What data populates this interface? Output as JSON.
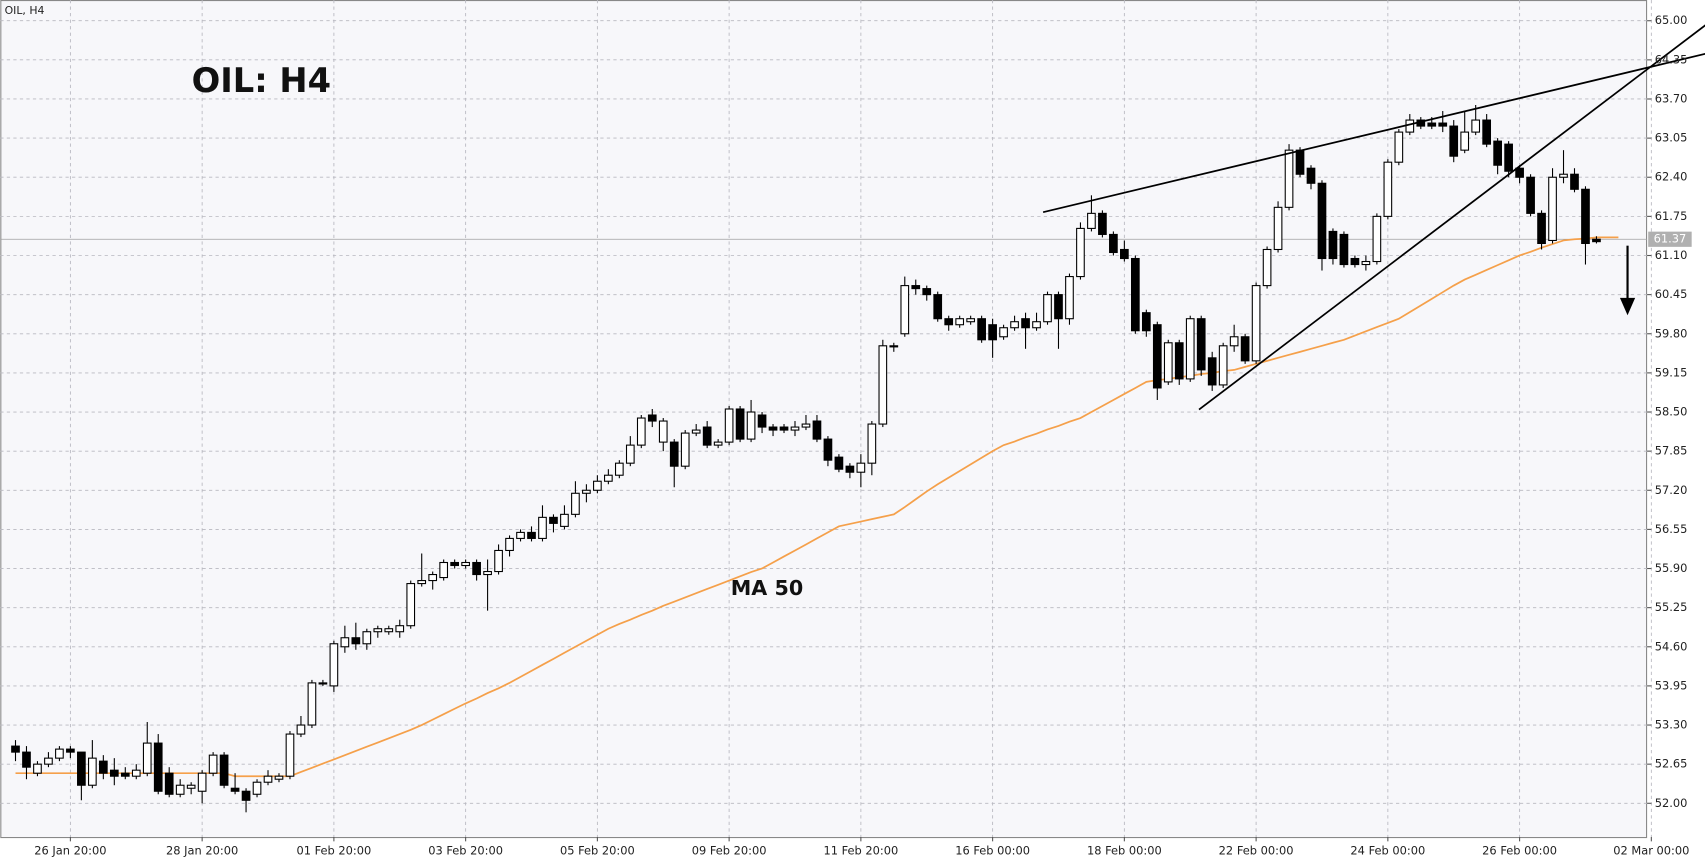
{
  "chart_data": {
    "type": "candlestick",
    "title": "OIL: H4",
    "symbol_label": "OIL, H4",
    "last_price": 61.37,
    "up_color": "#ffffff",
    "down_color": "#000000",
    "grid": true,
    "categories": [
      null,
      null,
      null,
      null,
      null,
      "26 Jan 20:00",
      null,
      null,
      null,
      null,
      null,
      null,
      null,
      null,
      null,
      null,
      null,
      "28 Jan 20:00",
      null,
      null,
      null,
      null,
      null,
      null,
      null,
      null,
      null,
      null,
      null,
      "01 Feb 20:00",
      null,
      null,
      null,
      null,
      null,
      null,
      null,
      null,
      null,
      null,
      null,
      "03 Feb 20:00",
      null,
      null,
      null,
      null,
      null,
      null,
      null,
      null,
      null,
      null,
      null,
      "05 Feb 20:00",
      null,
      null,
      null,
      null,
      null,
      null,
      null,
      null,
      null,
      null,
      null,
      "09 Feb 20:00",
      null,
      null,
      null,
      null,
      null,
      null,
      null,
      null,
      null,
      null,
      null,
      "11 Feb 20:00",
      null,
      null,
      null,
      null,
      null,
      null,
      null,
      null,
      null,
      null,
      null,
      "16 Feb 00:00",
      null,
      null,
      null,
      null,
      null,
      null,
      null,
      null,
      null,
      null,
      null,
      "18 Feb 00:00",
      null,
      null,
      null,
      null,
      null,
      null,
      null,
      null,
      null,
      null,
      null,
      "22 Feb 00:00",
      null,
      null,
      null,
      null,
      null,
      null,
      null,
      null,
      null,
      null,
      null,
      "24 Feb 00:00",
      null,
      null,
      null,
      null,
      null,
      null,
      null,
      null,
      null,
      null,
      null,
      "26 Feb 00:00",
      null,
      null,
      null,
      null,
      null,
      null,
      null,
      null,
      null,
      null,
      null,
      "02 Mar 00:00"
    ],
    "open": [
      52.95,
      52.85,
      52.5,
      52.65,
      52.75,
      52.9,
      52.85,
      52.3,
      52.7,
      52.55,
      52.5,
      52.45,
      52.5,
      53.0,
      52.5,
      52.15,
      52.25,
      52.2,
      52.5,
      52.8,
      52.25,
      52.2,
      52.15,
      52.35,
      52.4,
      52.45,
      53.15,
      53.3,
      54.0,
      53.95,
      54.6,
      54.75,
      54.65,
      54.85,
      54.85,
      54.85,
      54.95,
      55.65,
      55.7,
      55.75,
      56.0,
      55.95,
      56.0,
      55.8,
      55.85,
      56.2,
      56.4,
      56.5,
      56.4,
      56.75,
      56.6,
      56.8,
      57.15,
      57.2,
      57.35,
      57.45,
      57.65,
      57.95,
      58.45,
      58.0,
      58.0,
      57.6,
      58.15,
      58.25,
      57.95,
      58.0,
      58.55,
      58.05,
      58.45,
      58.25,
      58.25,
      58.2,
      58.25,
      58.35,
      58.05,
      57.75,
      57.6,
      57.5,
      57.65,
      58.3,
      59.6,
      59.8,
      60.6,
      60.55,
      60.45,
      60.05,
      59.95,
      60.0,
      60.05,
      59.95,
      59.75,
      59.9,
      60.05,
      59.9,
      60.0,
      60.45,
      60.05,
      60.75,
      61.55,
      61.8,
      61.45,
      61.2,
      61.05,
      60.15,
      59.95,
      59.0,
      59.65,
      59.05,
      60.05,
      59.4,
      58.95,
      59.6,
      59.75,
      59.35,
      60.6,
      61.2,
      61.9,
      62.85,
      62.55,
      62.3,
      61.5,
      61.45,
      61.05,
      60.95,
      61.0,
      61.75,
      62.65,
      63.15,
      63.35,
      63.3,
      63.3,
      63.25,
      62.85,
      63.15,
      63.35,
      63.0,
      62.95,
      62.55,
      62.4,
      61.8,
      61.35,
      62.4,
      62.45,
      62.2,
      61.37,
      null,
      null,
      null,
      null,
      null
    ],
    "high": [
      53.05,
      52.95,
      52.7,
      52.85,
      52.95,
      52.95,
      52.85,
      53.05,
      52.8,
      52.75,
      52.6,
      52.65,
      53.35,
      53.15,
      52.6,
      52.4,
      52.35,
      52.55,
      52.85,
      52.85,
      52.5,
      52.25,
      52.4,
      52.55,
      52.5,
      53.2,
      53.45,
      54.05,
      54.05,
      54.7,
      54.95,
      55.0,
      54.9,
      54.95,
      54.95,
      55.05,
      55.7,
      56.15,
      55.85,
      56.05,
      56.05,
      56.05,
      56.05,
      56.05,
      56.3,
      56.45,
      56.55,
      56.6,
      56.95,
      56.8,
      56.95,
      57.35,
      57.3,
      57.45,
      57.55,
      57.7,
      58.1,
      58.45,
      58.55,
      58.4,
      58.05,
      58.2,
      58.3,
      58.35,
      58.05,
      58.6,
      58.6,
      58.7,
      58.5,
      58.3,
      58.3,
      58.35,
      58.45,
      58.45,
      58.1,
      57.8,
      57.65,
      57.8,
      58.35,
      59.7,
      59.65,
      60.75,
      60.7,
      60.6,
      60.5,
      60.1,
      60.1,
      60.1,
      60.1,
      60.05,
      59.95,
      60.1,
      60.15,
      60.15,
      60.5,
      60.5,
      60.8,
      61.65,
      62.1,
      61.85,
      61.5,
      61.35,
      61.1,
      60.2,
      60.0,
      59.7,
      59.7,
      60.1,
      60.1,
      59.5,
      59.65,
      59.95,
      59.8,
      60.65,
      61.25,
      62.0,
      62.95,
      62.9,
      62.6,
      62.35,
      61.55,
      61.5,
      61.1,
      61.1,
      61.8,
      62.7,
      63.2,
      63.45,
      63.4,
      63.4,
      63.5,
      63.35,
      63.5,
      63.6,
      63.45,
      63.05,
      63.0,
      62.6,
      62.45,
      61.85,
      62.55,
      62.85,
      62.55,
      62.25,
      61.42,
      null,
      null,
      null,
      null,
      null
    ],
    "low": [
      52.7,
      52.4,
      52.45,
      52.6,
      52.7,
      52.75,
      52.05,
      52.25,
      52.4,
      52.3,
      52.4,
      52.4,
      52.45,
      52.15,
      52.1,
      52.1,
      52.15,
      52.0,
      52.45,
      52.25,
      52.15,
      51.85,
      52.1,
      52.3,
      52.35,
      52.4,
      53.1,
      53.25,
      53.95,
      53.85,
      54.5,
      54.55,
      54.55,
      54.75,
      54.8,
      54.75,
      54.9,
      55.6,
      55.55,
      55.7,
      55.9,
      55.9,
      55.7,
      55.2,
      55.8,
      56.1,
      56.35,
      56.35,
      56.35,
      56.5,
      56.55,
      56.75,
      57.0,
      57.15,
      57.3,
      57.4,
      57.6,
      57.9,
      58.25,
      57.85,
      57.25,
      57.55,
      58.1,
      57.9,
      57.9,
      57.95,
      58.0,
      58.0,
      58.15,
      58.1,
      58.15,
      58.1,
      58.2,
      58.0,
      57.6,
      57.5,
      57.4,
      57.25,
      57.45,
      58.25,
      59.5,
      59.75,
      60.45,
      60.35,
      60.0,
      59.85,
      59.9,
      59.95,
      59.65,
      59.4,
      59.7,
      59.85,
      59.55,
      59.85,
      59.95,
      59.55,
      59.95,
      60.7,
      61.5,
      61.4,
      61.1,
      61.0,
      59.8,
      59.75,
      58.7,
      58.95,
      58.95,
      59.0,
      59.1,
      58.85,
      58.9,
      59.5,
      59.3,
      59.3,
      60.55,
      61.15,
      61.85,
      62.4,
      62.2,
      60.85,
      60.95,
      60.9,
      60.9,
      60.85,
      60.95,
      61.7,
      62.6,
      63.1,
      63.2,
      63.2,
      63.15,
      62.65,
      62.8,
      63.1,
      62.9,
      62.45,
      62.4,
      62.3,
      61.75,
      61.2,
      61.3,
      62.3,
      62.15,
      60.95,
      61.3,
      null,
      null,
      null,
      null,
      null
    ],
    "close": [
      52.85,
      52.6,
      52.65,
      52.75,
      52.9,
      52.85,
      52.3,
      52.75,
      52.5,
      52.45,
      52.45,
      52.55,
      53.0,
      52.2,
      52.15,
      52.3,
      52.3,
      52.5,
      52.8,
      52.3,
      52.2,
      52.05,
      52.35,
      52.45,
      52.45,
      53.15,
      53.3,
      54.0,
      54.0,
      54.65,
      54.75,
      54.65,
      54.85,
      54.9,
      54.9,
      54.95,
      55.65,
      55.7,
      55.8,
      56.0,
      55.95,
      56.0,
      55.8,
      55.85,
      56.2,
      56.4,
      56.5,
      56.4,
      56.75,
      56.65,
      56.8,
      57.15,
      57.2,
      57.35,
      57.45,
      57.65,
      57.95,
      58.4,
      58.35,
      58.35,
      57.6,
      58.15,
      58.2,
      57.95,
      58.0,
      58.55,
      58.05,
      58.5,
      58.25,
      58.2,
      58.2,
      58.25,
      58.3,
      58.05,
      57.7,
      57.55,
      57.5,
      57.65,
      58.3,
      59.6,
      59.6,
      60.6,
      60.55,
      60.45,
      60.05,
      59.95,
      60.05,
      60.05,
      59.7,
      59.7,
      59.9,
      60.0,
      59.9,
      60.0,
      60.45,
      60.05,
      60.75,
      61.55,
      61.8,
      61.45,
      61.15,
      61.05,
      59.85,
      59.85,
      58.9,
      59.65,
      59.05,
      60.05,
      59.2,
      58.95,
      59.6,
      59.75,
      59.35,
      60.6,
      61.2,
      61.9,
      62.85,
      62.45,
      62.3,
      61.05,
      61.05,
      60.95,
      60.95,
      61.0,
      61.75,
      62.65,
      63.15,
      63.35,
      63.25,
      63.25,
      63.25,
      62.75,
      63.15,
      63.35,
      62.95,
      62.6,
      62.5,
      62.4,
      61.8,
      61.3,
      62.4,
      62.45,
      62.2,
      61.3,
      61.33,
      null,
      null,
      null,
      null,
      null
    ],
    "ma": {
      "name": "MA 50",
      "color": "#f5a04a",
      "values": [
        52.5,
        52.5,
        52.5,
        52.5,
        52.5,
        52.5,
        52.5,
        52.5,
        52.5,
        52.5,
        52.5,
        52.5,
        52.5,
        52.5,
        52.5,
        52.5,
        52.5,
        52.5,
        52.5,
        52.5,
        52.45,
        52.45,
        52.45,
        52.45,
        52.45,
        52.45,
        52.52,
        52.59,
        52.66,
        52.73,
        52.8,
        52.87,
        52.94,
        53.01,
        53.08,
        53.15,
        53.22,
        53.3,
        53.39,
        53.48,
        53.57,
        53.66,
        53.74,
        53.83,
        53.91,
        54.0,
        54.1,
        54.2,
        54.3,
        54.4,
        54.5,
        54.6,
        54.7,
        54.8,
        54.9,
        54.98,
        55.05,
        55.13,
        55.2,
        55.28,
        55.35,
        55.42,
        55.49,
        55.56,
        55.63,
        55.7,
        55.77,
        55.84,
        55.9,
        56.0,
        56.1,
        56.2,
        56.3,
        56.4,
        56.5,
        56.6,
        56.64,
        56.68,
        56.72,
        56.76,
        56.8,
        56.92,
        57.05,
        57.18,
        57.3,
        57.41,
        57.52,
        57.63,
        57.74,
        57.85,
        57.95,
        58.01,
        58.08,
        58.14,
        58.21,
        58.27,
        58.34,
        58.4,
        58.5,
        58.6,
        58.7,
        58.8,
        58.9,
        59.0,
        59.03,
        59.05,
        59.08,
        59.1,
        59.13,
        59.15,
        59.18,
        59.2,
        59.25,
        59.3,
        59.35,
        59.4,
        59.45,
        59.5,
        59.55,
        59.6,
        59.65,
        59.7,
        59.77,
        59.84,
        59.91,
        59.98,
        60.05,
        60.16,
        60.27,
        60.38,
        60.49,
        60.6,
        60.7,
        60.78,
        60.86,
        60.94,
        61.02,
        61.1,
        61.16,
        61.23,
        61.29,
        61.35,
        61.37,
        61.38,
        61.4,
        61.4,
        61.4,
        null,
        null,
        null
      ]
    },
    "trendlines": [
      {
        "x": [
          93.6,
          154.6
        ],
        "y": [
          61.82,
          64.48
        ]
      },
      {
        "x": [
          107.8,
          154.6
        ],
        "y": [
          58.54,
          65.02
        ]
      }
    ],
    "ylim": [
      51.44,
      65.2
    ],
    "yticks": [
      {
        "value": 52,
        "label": "52.00"
      },
      {
        "value": 52.65,
        "label": "52.65"
      },
      {
        "value": 53.3,
        "label": "53.30"
      },
      {
        "value": 53.95,
        "label": "53.95"
      },
      {
        "value": 54.6,
        "label": "54.60"
      },
      {
        "value": 55.25,
        "label": "55.25"
      },
      {
        "value": 55.9,
        "label": "55.90"
      },
      {
        "value": 56.55,
        "label": "56.55"
      },
      {
        "value": 57.2,
        "label": "57.20"
      },
      {
        "value": 57.85,
        "label": "57.85"
      },
      {
        "value": 58.5,
        "label": "58.50"
      },
      {
        "value": 59.15,
        "label": "59.15"
      },
      {
        "value": 59.8,
        "label": "59.80"
      },
      {
        "value": 60.45,
        "label": "60.45"
      },
      {
        "value": 61.1,
        "label": "61.10"
      },
      {
        "value": 61.75,
        "label": "61.75"
      },
      {
        "value": 62.4,
        "label": "62.40"
      },
      {
        "value": 63.05,
        "label": "63.05"
      },
      {
        "value": 63.7,
        "label": "63.70"
      },
      {
        "value": 64.35,
        "label": "64.35"
      },
      {
        "value": 65,
        "label": "65.00"
      }
    ]
  }
}
